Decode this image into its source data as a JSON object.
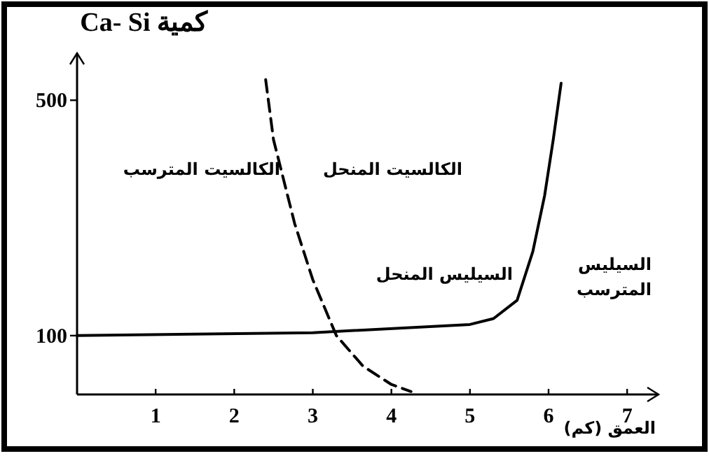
{
  "chart_data": {
    "type": "line",
    "ylabel": "كمية Ca- Si",
    "xlabel": "العمق (كم)",
    "xlim": [
      0,
      7.4
    ],
    "ylim": [
      0,
      580
    ],
    "xticks": [
      1,
      2,
      3,
      4,
      5,
      6,
      7
    ],
    "yticks": [
      100,
      500
    ],
    "grid": false,
    "series": [
      {
        "color": "#000000",
        "line_style": "solid",
        "x": [
          0,
          3,
          5,
          5.3,
          5.6,
          5.8,
          5.95,
          6.06,
          6.16
        ],
        "values": [
          100,
          105,
          119,
          129,
          160,
          243,
          338,
          433,
          529
        ]
      },
      {
        "color": "#000000",
        "line_style": "dashed",
        "x": [
          2.4,
          2.5,
          2.77,
          3.0,
          3.3,
          3.64,
          4.0,
          4.25
        ],
        "values": [
          535,
          433,
          290,
          195,
          100,
          48,
          17,
          5
        ]
      }
    ],
    "annotations": [
      "الكالسيت المترسب",
      "الكالسيت المنحل",
      "السيليس المنحل",
      "السيليس\nالمترسب"
    ]
  }
}
